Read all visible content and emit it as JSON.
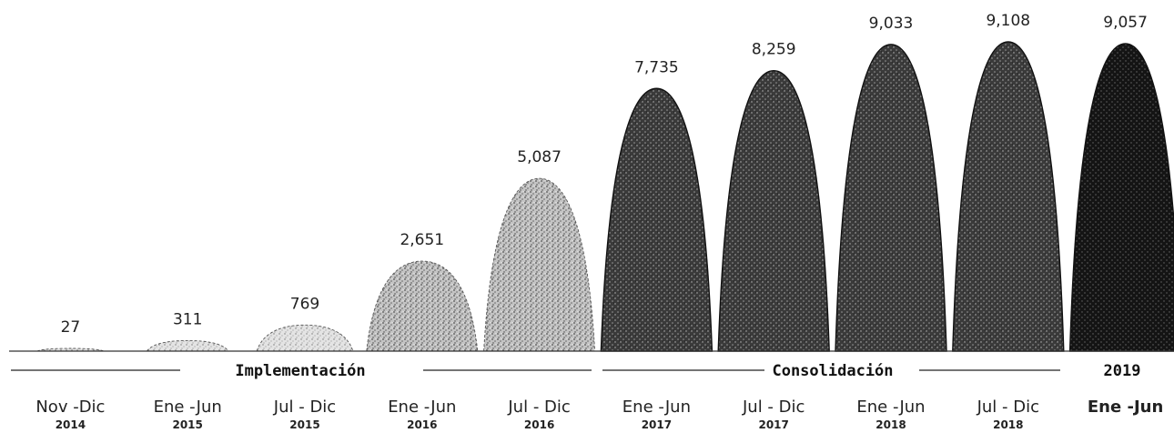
{
  "chart_data": {
    "type": "area",
    "categories": [
      {
        "period": "Nov -Dic",
        "year": "2014"
      },
      {
        "period": "Ene -Jun",
        "year": "2015"
      },
      {
        "period": "Jul - Dic",
        "year": "2015"
      },
      {
        "period": "Ene -Jun",
        "year": "2016"
      },
      {
        "period": "Jul - Dic",
        "year": "2016"
      },
      {
        "period": "Ene -Jun",
        "year": "2017"
      },
      {
        "period": "Jul - Dic",
        "year": "2017"
      },
      {
        "period": "Ene -Jun",
        "year": "2018"
      },
      {
        "period": "Jul - Dic",
        "year": "2018"
      },
      {
        "period": "Ene -Jun",
        "year": ""
      }
    ],
    "values": [
      27,
      311,
      769,
      2651,
      5087,
      7735,
      8259,
      9033,
      9108,
      9057
    ],
    "value_labels": [
      "27",
      "311",
      "769",
      "2,651",
      "5,087",
      "7,735",
      "8,259",
      "9,033",
      "9,108",
      "9,057"
    ],
    "phases": [
      {
        "label": "Implementación"
      },
      {
        "label": "Consolidación"
      },
      {
        "label": "2019"
      }
    ],
    "colors": {
      "light": "#cfcfcf",
      "medium": "#a9a9a9",
      "dark": "#3e3e3e",
      "darkest": "#111111",
      "text": "#222222"
    }
  }
}
